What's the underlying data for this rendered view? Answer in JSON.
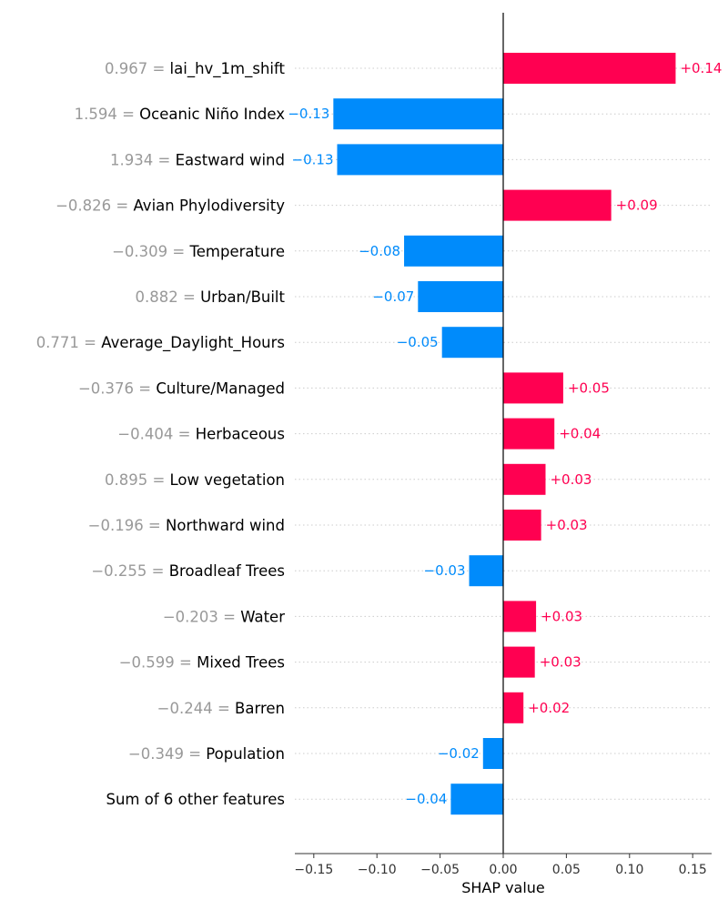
{
  "chart_data": {
    "type": "bar",
    "orientation": "horizontal",
    "xlabel": "SHAP value",
    "xlim": [
      -0.165,
      0.165
    ],
    "x_ticks": [
      -0.15,
      -0.1,
      -0.05,
      0.0,
      0.05,
      0.1,
      0.15
    ],
    "x_tick_labels": [
      "−0.15",
      "−0.10",
      "−0.05",
      "0.00",
      "0.05",
      "0.10",
      "0.15"
    ],
    "grid": "horizontal dotted guides per row",
    "colors": {
      "positive": "#ff0051",
      "negative": "#008bfb",
      "feature_value": "#999999",
      "feature_name": "#000000"
    },
    "rows": [
      {
        "feature_value": "0.967 =",
        "feature": "lai_hv_1m_shift",
        "value": 0.1365,
        "label": "+0.14"
      },
      {
        "feature_value": "1.594 =",
        "feature": "Oceanic Niño Index",
        "value": -0.1345,
        "label": "−0.13"
      },
      {
        "feature_value": "1.934 =",
        "feature": "Eastward wind",
        "value": -0.1315,
        "label": "−0.13"
      },
      {
        "feature_value": "−0.826 =",
        "feature": "Avian Phylodiversity",
        "value": 0.0855,
        "label": "+0.09"
      },
      {
        "feature_value": "−0.309 =",
        "feature": "Temperature",
        "value": -0.0785,
        "label": "−0.08"
      },
      {
        "feature_value": "0.882 =",
        "feature": "Urban/Built",
        "value": -0.0675,
        "label": "−0.07"
      },
      {
        "feature_value": "0.771 =",
        "feature": "Average_Daylight_Hours",
        "value": -0.0485,
        "label": "−0.05"
      },
      {
        "feature_value": "−0.376 =",
        "feature": "Culture/Managed",
        "value": 0.0475,
        "label": "+0.05"
      },
      {
        "feature_value": "−0.404 =",
        "feature": "Herbaceous",
        "value": 0.0405,
        "label": "+0.04"
      },
      {
        "feature_value": "0.895 =",
        "feature": "Low vegetation",
        "value": 0.0335,
        "label": "+0.03"
      },
      {
        "feature_value": "−0.196 =",
        "feature": "Northward wind",
        "value": 0.03,
        "label": "+0.03"
      },
      {
        "feature_value": "−0.255 =",
        "feature": "Broadleaf Trees",
        "value": -0.027,
        "label": "−0.03"
      },
      {
        "feature_value": "−0.203 =",
        "feature": "Water",
        "value": 0.026,
        "label": "+0.03"
      },
      {
        "feature_value": "−0.599 =",
        "feature": "Mixed Trees",
        "value": 0.025,
        "label": "+0.03"
      },
      {
        "feature_value": "−0.244 =",
        "feature": "Barren",
        "value": 0.016,
        "label": "+0.02"
      },
      {
        "feature_value": "−0.349 =",
        "feature": "Population",
        "value": -0.016,
        "label": "−0.02"
      },
      {
        "feature_value": "",
        "feature": "Sum of 6 other features",
        "value": -0.0415,
        "label": "−0.04"
      }
    ]
  }
}
